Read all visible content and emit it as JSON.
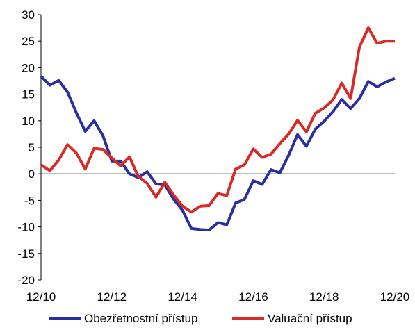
{
  "chart_data": {
    "type": "line",
    "title": "",
    "xlabel": "",
    "ylabel": "",
    "ylim": [
      -20,
      30
    ],
    "y_ticks": [
      "30",
      "25",
      "20",
      "15",
      "10",
      "5",
      "0",
      "-5",
      "-10",
      "-15",
      "-20"
    ],
    "x_tick_labels": [
      "12/10",
      "12/12",
      "12/14",
      "12/16",
      "12/18",
      "12/20"
    ],
    "x_tick_positions": [
      0,
      8,
      16,
      24,
      32,
      40
    ],
    "grid": false,
    "legend_position": "bottom",
    "x_period": "quarterly",
    "series": [
      {
        "name": "Obezřetnostní přístup",
        "color": "#2a2fa0",
        "values": [
          18.4,
          16.7,
          17.6,
          15.4,
          11.5,
          8.0,
          10.0,
          7.2,
          2.4,
          2.4,
          0.0,
          -0.7,
          0.4,
          -1.9,
          -2.1,
          -4.8,
          -6.9,
          -10.3,
          -10.5,
          -10.6,
          -9.2,
          -9.6,
          -5.5,
          -4.8,
          -1.3,
          -2.0,
          0.8,
          0.2,
          3.5,
          7.4,
          5.2,
          8.4,
          9.9,
          11.7,
          14.0,
          12.3,
          14.2,
          17.4,
          16.4,
          17.3,
          18.0
        ]
      },
      {
        "name": "Valuační přístup",
        "color": "#d82a27",
        "values": [
          1.7,
          0.6,
          2.6,
          5.5,
          3.9,
          0.9,
          4.8,
          4.6,
          3.0,
          1.5,
          3.2,
          -0.5,
          -1.8,
          -4.4,
          -1.6,
          -4.0,
          -6.1,
          -7.2,
          -6.1,
          -6.0,
          -3.7,
          -4.1,
          0.9,
          1.7,
          4.7,
          3.1,
          3.7,
          5.7,
          7.5,
          10.1,
          7.9,
          11.4,
          12.4,
          13.9,
          17.1,
          14.2,
          23.9,
          27.5,
          24.6,
          25.0,
          25.0
        ]
      }
    ]
  }
}
